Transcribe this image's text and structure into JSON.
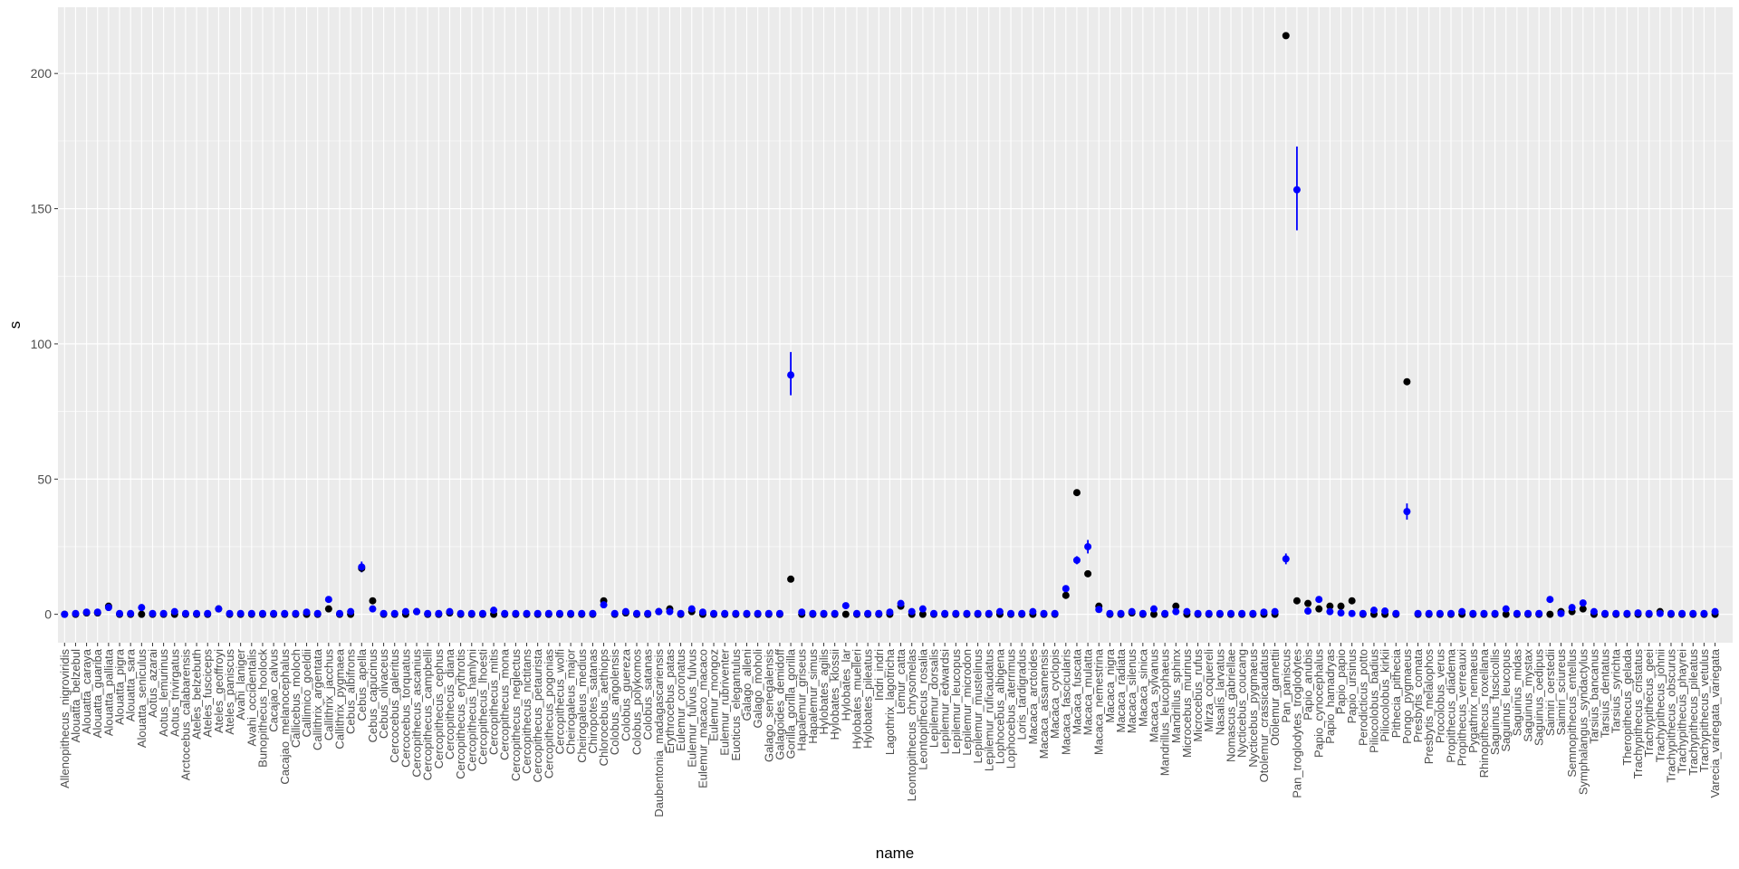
{
  "chart_data": {
    "type": "scatter",
    "xlabel": "name",
    "ylabel": "s",
    "ylim": [
      -10.5,
      224.5
    ],
    "yticks": [
      0,
      50,
      100,
      150,
      200
    ],
    "grid": true,
    "colors": {
      "panel": "#ebebeb",
      "grid": "#ffffff",
      "observed": "#000000",
      "estimate": "#0000ff",
      "tick_text": "#4d4d4d",
      "tick_mark": "#333333"
    },
    "categories": [
      "Allenopithecus_nigroviridis",
      "Alouatta_belzebul",
      "Alouatta_caraya",
      "Alouatta_guariba",
      "Alouatta_palliata",
      "Alouatta_pigra",
      "Alouatta_sara",
      "Alouatta_seniculus",
      "Aotus_azarai",
      "Aotus_lemurinus",
      "Aotus_trivirgatus",
      "Arctocebus_calabarensis",
      "Ateles_belzebuth",
      "Ateles_fusciceps",
      "Ateles_geoffroyi",
      "Ateles_paniscus",
      "Avahi_laniger",
      "Avahi_occidentalis",
      "Bunopithecus_hoolock",
      "Cacajao_calvus",
      "Cacajao_melanocephalus",
      "Callicebus_moloch",
      "Callimico_goeldii",
      "Callithrix_argentata",
      "Callithrix_jacchus",
      "Callithrix_pygmaea",
      "Cebus_albifrons",
      "Cebus_apella",
      "Cebus_capucinus",
      "Cebus_olivaceus",
      "Cercocebus_galeritus",
      "Cercocebus_torquatus",
      "Cercopithecus_ascanius",
      "Cercopithecus_campbelli",
      "Cercopithecus_cephus",
      "Cercopithecus_diana",
      "Cercopithecus_erythrotis",
      "Cercopithecus_hamlyni",
      "Cercopithecus_lhoesti",
      "Cercopithecus_mitis",
      "Cercopithecus_mona",
      "Cercopithecus_neglectus",
      "Cercopithecus_nictitans",
      "Cercopithecus_petaurista",
      "Cercopithecus_pogonias",
      "Cercopithecus_wolfi",
      "Cheirogaleus_major",
      "Cheirogaleus_medius",
      "Chiropotes_satanas",
      "Chlorocebus_aethiops",
      "Colobus_angolensis",
      "Colobus_guereza",
      "Colobus_polykomos",
      "Colobus_satanas",
      "Daubentonia_madagascariensis",
      "Erythrocebus_patas",
      "Eulemur_coronatus",
      "Eulemur_fulvus_fulvus",
      "Eulemur_macaco_macaco",
      "Eulemur_mongoz",
      "Eulemur_rubriventer",
      "Euoticus_elegantulus",
      "Galago_alleni",
      "Galago_moholi",
      "Galago_senegalensis",
      "Galagoides_demidoff",
      "Gorilla_gorilla_gorilla",
      "Hapalemur_griseus",
      "Hapalemur_simus",
      "Hylobates_agilis",
      "Hylobates_klossii",
      "Hylobates_lar",
      "Hylobates_muelleri",
      "Hylobates_pileatus",
      "Indri_indri",
      "Lagothrix_lagotricha",
      "Lemur_catta",
      "Leontopithecus_chrysomelas",
      "Leontopithecus_rosalia",
      "Lepilemur_dorsalis",
      "Lepilemur_edwardsi",
      "Lepilemur_leucopus",
      "Lepilemur_microdon",
      "Lepilemur_mustelinus",
      "Lepilemur_ruficaudatus",
      "Lophocebus_albigena",
      "Lophocebus_aterrimus",
      "Loris_tardigradus",
      "Macaca_arctoides",
      "Macaca_assamensis",
      "Macaca_cyclopis",
      "Macaca_fascicularis",
      "Macaca_fuscata",
      "Macaca_mulatta",
      "Macaca_nemestrina",
      "Macaca_nigra",
      "Macaca_radiata",
      "Macaca_silenus",
      "Macaca_sinica",
      "Macaca_sylvanus",
      "Mandrillus_leucophaeus",
      "Mandrillus_sphinx",
      "Microcebus_murinus",
      "Microcebus_rufus",
      "Mirza_coquereli",
      "Nasalis_larvatus",
      "Nomascus_gabriellae",
      "Nycticebus_coucang",
      "Nycticebus_pygmaeus",
      "Otolemur_crassicaudatus",
      "Otolemur_garnettii",
      "Pan_paniscus",
      "Pan_troglodytes_troglodytes",
      "Papio_anubis",
      "Papio_cynocephalus",
      "Papio_hamadryas",
      "Papio_papio",
      "Papio_ursinus",
      "Perodicticus_potto",
      "Piliocolobus_badius",
      "Piliocolobus_kirkii",
      "Pithecia_pithecia",
      "Pongo_pygmaeus",
      "Presbytis_comata",
      "Presbytis_melalophos",
      "Procolobus_verus",
      "Propithecus_diadema",
      "Propithecus_verreauxi",
      "Pygathrix_nemaeus",
      "Rhinopithecus_roxellana",
      "Saguinus_fuscicollis",
      "Saguinus_leucopus",
      "Saguinus_midas",
      "Saguinus_mystax",
      "Saguinus_oedipus",
      "Saimiri_oerstedii",
      "Saimiri_sciureus",
      "Semnopithecus_entellus",
      "Symphalangus_syndactylus",
      "Tarsius_bancanus",
      "Tarsius_dentatus",
      "Tarsius_syrichta",
      "Theropithecus_gelada",
      "Trachypithecus_cristatus",
      "Trachypithecus_geei",
      "Trachypithecus_johnii",
      "Trachypithecus_obscurus",
      "Trachypithecus_phayrei",
      "Trachypithecus_pileatus",
      "Trachypithecus_vetulus",
      "Varecia_variegata_variegata"
    ],
    "series": [
      {
        "role": "observed",
        "color": "#000000",
        "values": [
          0,
          0,
          0.5,
          0.5,
          3,
          0,
          0,
          0,
          0,
          0,
          0,
          0,
          0,
          0,
          2,
          0,
          0,
          0,
          0,
          0,
          0,
          0,
          0,
          0,
          2,
          0,
          0,
          17,
          5,
          0,
          0,
          0,
          1,
          0,
          0,
          0.5,
          0,
          0,
          0,
          0,
          0,
          0,
          0,
          0,
          0,
          0,
          0,
          0,
          0,
          5,
          0,
          0.5,
          0,
          0,
          1,
          2,
          0,
          1,
          0,
          0,
          0,
          0,
          0,
          0,
          0,
          0,
          13,
          0,
          0,
          0,
          0,
          0,
          0,
          0,
          0,
          0,
          3,
          0,
          0,
          0,
          0,
          0,
          0,
          0,
          0,
          0,
          0,
          0,
          0,
          0,
          0,
          7,
          45,
          15,
          3,
          0,
          0,
          0.5,
          0,
          0,
          0,
          3,
          0,
          0,
          0,
          0,
          0,
          0,
          0,
          0,
          0,
          214,
          5,
          4,
          2,
          3,
          3,
          5,
          0,
          0,
          0,
          0,
          86,
          0,
          0,
          0,
          0,
          0,
          0,
          0,
          0,
          0,
          0,
          0,
          0,
          0,
          1,
          1,
          2,
          0,
          0,
          0,
          0,
          0,
          0,
          1,
          0,
          0,
          0,
          0,
          0
        ]
      },
      {
        "role": "estimate",
        "color": "#0000ff",
        "values": [
          0,
          0.3,
          0.8,
          0.8,
          2.5,
          0.3,
          0.3,
          2.5,
          0.3,
          0.3,
          1,
          0.3,
          0.3,
          0.3,
          2,
          0.3,
          0.3,
          0.3,
          0.3,
          0.3,
          0.3,
          0.3,
          0.8,
          0.3,
          5.5,
          0.3,
          1,
          17.5,
          2,
          0.3,
          0.3,
          1,
          1,
          0.3,
          0.3,
          1,
          0.3,
          0.3,
          0.3,
          1.5,
          0.3,
          0.3,
          0.3,
          0.3,
          0.3,
          0.3,
          0.3,
          0.3,
          0.3,
          3.5,
          0.3,
          1,
          0.3,
          0.3,
          1,
          1,
          0.3,
          2,
          0.8,
          0.3,
          0.3,
          0.3,
          0.3,
          0.3,
          0.3,
          0.3,
          88.5,
          0.8,
          0.3,
          0.3,
          0.3,
          3.2,
          0.3,
          0.3,
          0.3,
          0.8,
          4,
          1,
          2,
          0.3,
          0.3,
          0.3,
          0.3,
          0.3,
          0.3,
          1,
          0.3,
          0.3,
          1,
          0.3,
          0.3,
          9.5,
          20,
          25,
          1.8,
          0.3,
          0.3,
          1,
          0.3,
          2,
          0.3,
          1,
          1,
          0.3,
          0.3,
          0.3,
          0.3,
          0.3,
          0.3,
          0.8,
          1,
          20.5,
          157,
          1.2,
          5.5,
          1,
          0.5,
          0.3,
          0.3,
          1.5,
          1.2,
          0.3,
          38,
          0.3,
          0.3,
          0.3,
          0.3,
          1,
          0.3,
          0.3,
          0.3,
          2,
          0.3,
          0.3,
          0.3,
          5.5,
          0.3,
          2.5,
          4.2,
          1,
          0.3,
          0.3,
          0.3,
          0.5,
          0.3,
          0.3,
          0.3,
          0.3,
          0.3,
          0.3,
          1
        ]
      }
    ],
    "errorbars": [
      {
        "category": "Cebus_apella",
        "low": 15.5,
        "high": 19.5
      },
      {
        "category": "Gorilla_gorilla_gorilla",
        "low": 81,
        "high": 97
      },
      {
        "category": "Macaca_fascicularis",
        "low": 8.5,
        "high": 10.5
      },
      {
        "category": "Macaca_fuscata",
        "low": 18.5,
        "high": 21.5
      },
      {
        "category": "Macaca_mulatta",
        "low": 22.5,
        "high": 27.5
      },
      {
        "category": "Pan_paniscus",
        "low": 18.5,
        "high": 22.5
      },
      {
        "category": "Pan_troglodytes_troglodytes",
        "low": 142,
        "high": 173
      },
      {
        "category": "Pongo_pygmaeus",
        "low": 35,
        "high": 41
      }
    ]
  }
}
